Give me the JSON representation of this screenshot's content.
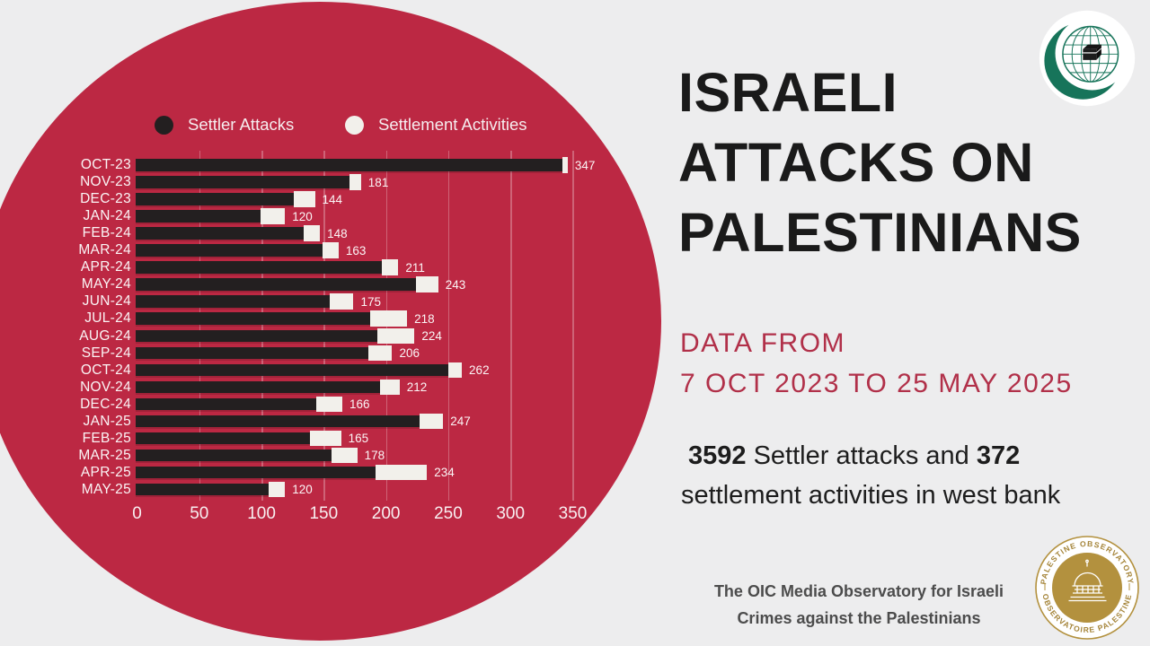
{
  "title_lines": [
    "ISRAELI",
    "ATTACKS ON",
    "PALESTINIANS"
  ],
  "subtitle_lines": [
    "DATA FROM",
    "7 OCT 2023 TO 25 MAY 2025"
  ],
  "stats": {
    "attacks_count": "3592",
    "between_text": " Settler attacks and ",
    "activities_count": "372",
    "line2": "settlement activities in west bank"
  },
  "footer_lines": [
    "The OIC Media Observatory for Israeli",
    "Crimes against the Palestinians"
  ],
  "legend": [
    {
      "label": "Settler Attacks",
      "color": "#231F20"
    },
    {
      "label": "Settlement Activities",
      "color": "#F2F0EB"
    }
  ],
  "stamp": {
    "top_text": "PALESTINE OBSERVATORY",
    "bottom_text": "OBSERVATOIRE PALESTINE"
  },
  "colors": {
    "background": "#EDEDEE",
    "circle": "#BC2843",
    "bar_dark": "#231F20",
    "bar_light": "#F2F0EB",
    "accent_red": "#B13049",
    "title_text": "#1A1A1A",
    "footer_text": "#4C4C4C",
    "oic_green": "#17745A",
    "stamp_gold": "#B3913E"
  },
  "chart_data": {
    "type": "bar",
    "orientation": "horizontal",
    "stacked": true,
    "title": "",
    "xlabel": "",
    "ylabel": "",
    "xlim": [
      0,
      365
    ],
    "xticks": [
      0,
      50,
      100,
      150,
      200,
      250,
      300,
      350
    ],
    "grid": true,
    "legend_position": "top",
    "categories": [
      "OCT-23",
      "NOV-23",
      "DEC-23",
      "JAN-24",
      "FEB-24",
      "MAR-24",
      "APR-24",
      "MAY-24",
      "JUN-24",
      "JUL-24",
      "AUG-24",
      "SEP-24",
      "OCT-24",
      "NOV-24",
      "DEC-24",
      "JAN-25",
      "FEB-25",
      "MAR-25",
      "APR-25",
      "MAY-25"
    ],
    "series": [
      {
        "name": "Settler Attacks",
        "color": "#231F20",
        "values": [
          343,
          172,
          127,
          100,
          135,
          150,
          198,
          225,
          156,
          188,
          194,
          187,
          251,
          196,
          145,
          228,
          140,
          157,
          193,
          107
        ]
      },
      {
        "name": "Settlement Activities",
        "color": "#F2F0EB",
        "values": [
          4,
          9,
          17,
          20,
          13,
          13,
          13,
          18,
          19,
          30,
          30,
          19,
          11,
          16,
          21,
          19,
          25,
          21,
          41,
          13
        ]
      }
    ],
    "totals": [
      347,
      181,
      144,
      120,
      148,
      163,
      211,
      243,
      175,
      218,
      224,
      206,
      262,
      212,
      166,
      247,
      165,
      178,
      234,
      120
    ],
    "bar_label": "total",
    "note": "bar end labels show monthly totals; settler-attack vs settlement-activity split estimated from segment widths; overall totals 3592 attacks + 372 activities"
  }
}
